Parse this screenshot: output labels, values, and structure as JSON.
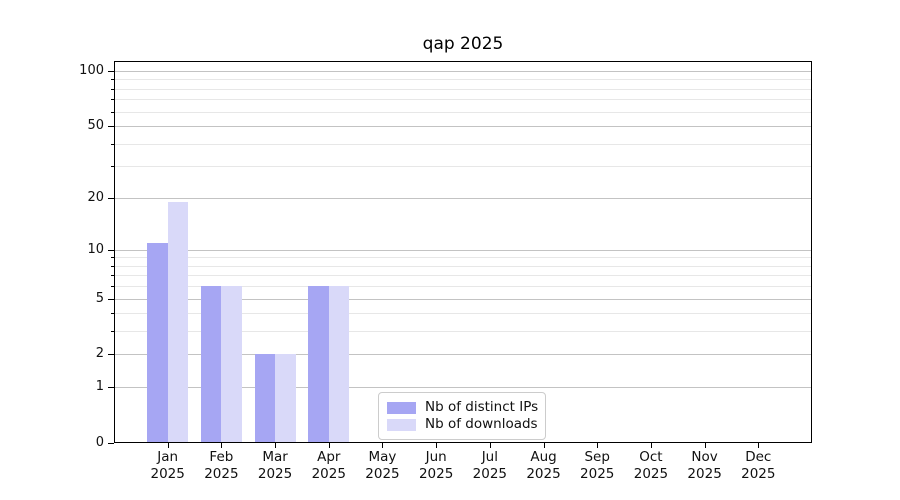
{
  "chart_data": {
    "type": "bar",
    "title": "qap 2025",
    "categories": [
      "Jan 2025",
      "Feb 2025",
      "Mar 2025",
      "Apr 2025",
      "May 2025",
      "Jun 2025",
      "Jul 2025",
      "Aug 2025",
      "Sep 2025",
      "Oct 2025",
      "Nov 2025",
      "Dec 2025"
    ],
    "series": [
      {
        "name": "Nb of distinct IPs",
        "color": "#a6a6f3",
        "values": [
          11,
          6,
          2,
          6,
          0,
          0,
          0,
          0,
          0,
          0,
          0,
          0
        ]
      },
      {
        "name": "Nb of downloads",
        "color": "#d9d9f9",
        "values": [
          19,
          6,
          2,
          6,
          0,
          0,
          0,
          0,
          0,
          0,
          0,
          0
        ]
      }
    ],
    "xlabel": "",
    "ylabel": "",
    "yscale": "log1p",
    "yticks": [
      0,
      1,
      2,
      5,
      10,
      20,
      50,
      100
    ],
    "minor_gridlines": [
      3,
      4,
      6,
      7,
      8,
      9,
      30,
      40,
      60,
      70,
      80,
      90
    ],
    "ylim": [
      0,
      113
    ],
    "grid": "horizontal-only",
    "legend_position": "inside-bottom-center"
  },
  "style": {
    "major_grid_color": "#c3c3c3",
    "minor_grid_color": "#e7e7e7",
    "spine_color": "#000000",
    "background": "#ffffff"
  }
}
